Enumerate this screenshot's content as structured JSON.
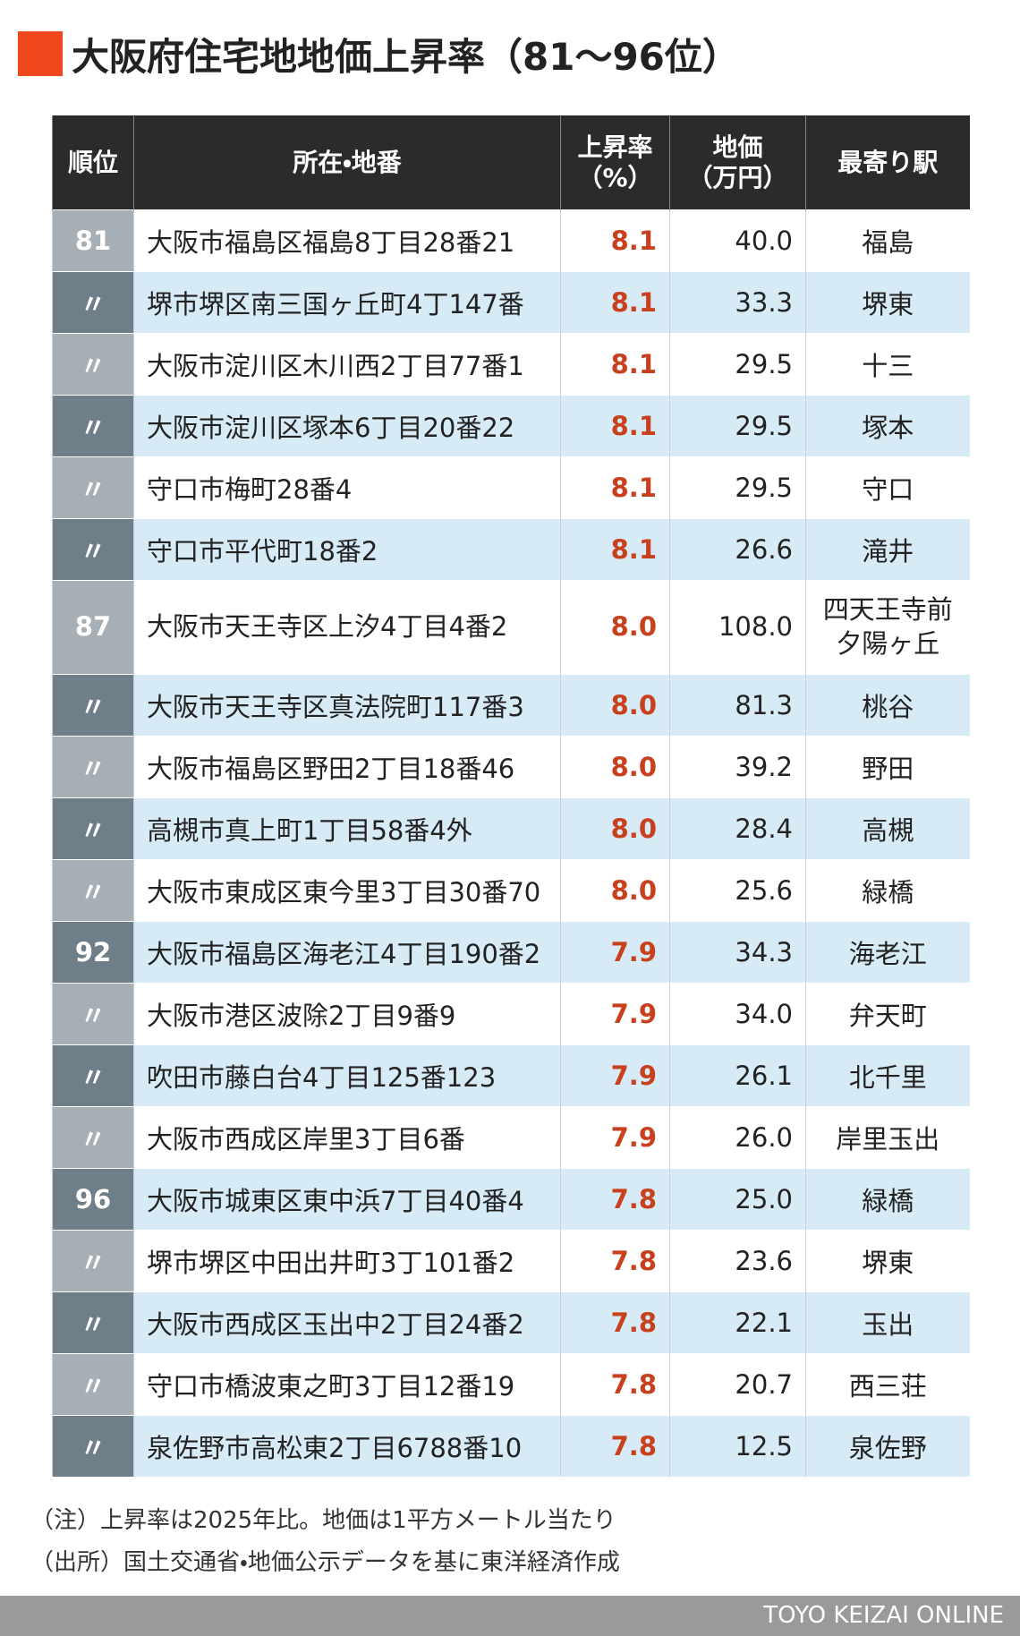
{
  "title": "大阪府住宅地地価上昇率（81〜96位）",
  "table": {
    "header": [
      [
        "順位"
      ],
      [
        "所在・地番"
      ],
      [
        "上昇率",
        "（%）"
      ],
      [
        "地価",
        "（万円）"
      ],
      [
        "最寄り駅"
      ]
    ],
    "rows": [
      [
        "81",
        "大阪市福島区福島8丁目28番21",
        "8.1",
        "40.0",
        "福島"
      ],
      [
        "〃",
        "堺市堺区南三国ヶ丘町4丁147番",
        "8.1",
        "33.3",
        "堺東"
      ],
      [
        "〃",
        "大阪市淀川区木川西2丁目77番1",
        "8.1",
        "29.5",
        "十三"
      ],
      [
        "〃",
        "大阪市淀川区塚本6丁目20番22",
        "8.1",
        "29.5",
        "塚本"
      ],
      [
        "〃",
        "守口市梅町28番4",
        "8.1",
        "29.5",
        "守口"
      ],
      [
        "〃",
        "守口市平代町18番2",
        "8.1",
        "26.6",
        "滝井"
      ],
      [
        "87",
        "大阪市天王寺区上汐4丁目4番2",
        "8.0",
        "108.0",
        [
          "四天王寺前",
          "夕陽ヶ丘"
        ]
      ],
      [
        "〃",
        "大阪市天王寺区真法院町117番3",
        "8.0",
        "81.3",
        "桃谷"
      ],
      [
        "〃",
        "大阪市福島区野田2丁目18番46",
        "8.0",
        "39.2",
        "野田"
      ],
      [
        "〃",
        "高槻市真上町1丁目58番4外",
        "8.0",
        "28.4",
        "高槻"
      ],
      [
        "〃",
        "大阪市東成区東今里3丁目30番70",
        "8.0",
        "25.6",
        "緑橋"
      ],
      [
        "92",
        "大阪市福島区海老江4丁目190番2",
        "7.9",
        "34.3",
        "海老江"
      ],
      [
        "〃",
        "大阪市港区波除2丁目9番9",
        "7.9",
        "34.0",
        "弁天町"
      ],
      [
        "〃",
        "吹田市藤白台4丁目125番123",
        "7.9",
        "26.1",
        "北千里"
      ],
      [
        "〃",
        "大阪市西成区岸里3丁目6番",
        "7.9",
        "26.0",
        "岸里玉出"
      ],
      [
        "96",
        "大阪市城東区東中浜7丁目40番4",
        "7.8",
        "25.0",
        "緑橋"
      ],
      [
        "〃",
        "堺市堺区中田出井町3丁101番2",
        "7.8",
        "23.6",
        "堺東"
      ],
      [
        "〃",
        "大阪市西成区玉出中2丁目24番2",
        "7.8",
        "22.1",
        "玉出"
      ],
      [
        "〃",
        "守口市橋波東之町3丁目12番19",
        "7.8",
        "20.7",
        "西三荘"
      ],
      [
        "〃",
        "泉佐野市高松東2丁目6788番10",
        "7.8",
        "12.5",
        "泉佐野"
      ]
    ]
  },
  "notes": [
    "（注）上昇率は2025年比。地価は1平方メートル当たり",
    "（出所）国土交通省・地価公示データを基に東洋経済作成"
  ],
  "footer": "TOYO KEIZAI ONLINE"
}
